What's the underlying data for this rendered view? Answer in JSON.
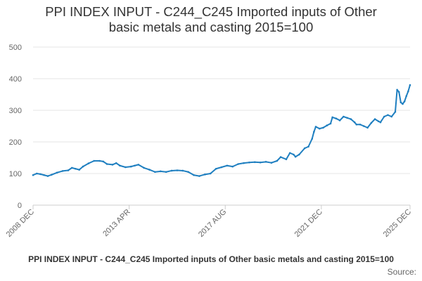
{
  "chart_data": {
    "type": "line",
    "title_line1": "PPI INDEX INPUT - C244_C245 Imported inputs of Other",
    "title_line2": "basic metals and casting 2015=100",
    "xlabel": "",
    "ylabel": "",
    "ylim": [
      0,
      500
    ],
    "yticks": [
      0,
      100,
      200,
      300,
      400,
      500
    ],
    "x_range": [
      "2008-12",
      "2025-12"
    ],
    "xticks": [
      {
        "label": "2008 DEC",
        "date": "2008-12"
      },
      {
        "label": "2013 APR",
        "date": "2013-04"
      },
      {
        "label": "2017 AUG",
        "date": "2017-08"
      },
      {
        "label": "2021 DEC",
        "date": "2021-12"
      },
      {
        "label": "2025 DEC",
        "date": "2025-12"
      }
    ],
    "grid": true,
    "legend": "none",
    "series": [
      {
        "color": "#1f7fc0",
        "points": [
          [
            "2008-12",
            95
          ],
          [
            "2009-02",
            100
          ],
          [
            "2009-04",
            98
          ],
          [
            "2009-06",
            95
          ],
          [
            "2009-08",
            92
          ],
          [
            "2009-10",
            96
          ],
          [
            "2010-01",
            103
          ],
          [
            "2010-04",
            108
          ],
          [
            "2010-07",
            110
          ],
          [
            "2010-09",
            118
          ],
          [
            "2010-11",
            115
          ],
          [
            "2011-01",
            112
          ],
          [
            "2011-03",
            122
          ],
          [
            "2011-06",
            132
          ],
          [
            "2011-09",
            140
          ],
          [
            "2011-12",
            140
          ],
          [
            "2012-02",
            138
          ],
          [
            "2012-04",
            130
          ],
          [
            "2012-07",
            128
          ],
          [
            "2012-09",
            133
          ],
          [
            "2012-11",
            125
          ],
          [
            "2013-02",
            120
          ],
          [
            "2013-05",
            122
          ],
          [
            "2013-07",
            125
          ],
          [
            "2013-09",
            128
          ],
          [
            "2013-12",
            118
          ],
          [
            "2014-03",
            112
          ],
          [
            "2014-06",
            105
          ],
          [
            "2014-09",
            107
          ],
          [
            "2014-12",
            105
          ],
          [
            "2015-03",
            109
          ],
          [
            "2015-06",
            110
          ],
          [
            "2015-09",
            109
          ],
          [
            "2015-12",
            105
          ],
          [
            "2016-03",
            95
          ],
          [
            "2016-06",
            92
          ],
          [
            "2016-09",
            97
          ],
          [
            "2016-12",
            100
          ],
          [
            "2017-03",
            115
          ],
          [
            "2017-06",
            120
          ],
          [
            "2017-09",
            125
          ],
          [
            "2017-12",
            122
          ],
          [
            "2018-03",
            130
          ],
          [
            "2018-06",
            133
          ],
          [
            "2018-09",
            135
          ],
          [
            "2018-12",
            136
          ],
          [
            "2019-03",
            135
          ],
          [
            "2019-06",
            137
          ],
          [
            "2019-09",
            134
          ],
          [
            "2019-12",
            140
          ],
          [
            "2020-02",
            152
          ],
          [
            "2020-05",
            145
          ],
          [
            "2020-07",
            165
          ],
          [
            "2020-09",
            160
          ],
          [
            "2020-10",
            153
          ],
          [
            "2020-12",
            160
          ],
          [
            "2021-03",
            180
          ],
          [
            "2021-05",
            185
          ],
          [
            "2021-07",
            210
          ],
          [
            "2021-08",
            232
          ],
          [
            "2021-09",
            248
          ],
          [
            "2021-11",
            242
          ],
          [
            "2022-01",
            245
          ],
          [
            "2022-03",
            252
          ],
          [
            "2022-05",
            258
          ],
          [
            "2022-06",
            278
          ],
          [
            "2022-08",
            274
          ],
          [
            "2022-10",
            268
          ],
          [
            "2022-12",
            280
          ],
          [
            "2023-02",
            276
          ],
          [
            "2023-04",
            272
          ],
          [
            "2023-06",
            262
          ],
          [
            "2023-07",
            255
          ],
          [
            "2023-09",
            255
          ],
          [
            "2023-11",
            250
          ],
          [
            "2024-01",
            245
          ],
          [
            "2024-03",
            260
          ],
          [
            "2024-05",
            272
          ],
          [
            "2024-07",
            265
          ],
          [
            "2024-08",
            262
          ],
          [
            "2024-10",
            280
          ],
          [
            "2024-12",
            285
          ],
          [
            "2025-02",
            280
          ],
          [
            "2025-04",
            295
          ],
          [
            "2025-05",
            365
          ],
          [
            "2025-06",
            358
          ],
          [
            "2025-07",
            325
          ],
          [
            "2025-08",
            320
          ],
          [
            "2025-09",
            328
          ],
          [
            "2025-10",
            345
          ],
          [
            "2025-11",
            360
          ],
          [
            "2025-12",
            380
          ]
        ]
      }
    ]
  },
  "footer": {
    "caption": "PPI INDEX INPUT - C244_C245 Imported inputs of Other basic metals and casting 2015=100",
    "source": "Source:"
  },
  "colors": {
    "line": "#1f7fc0",
    "grid": "#e6e6e6",
    "axis": "#cccccc",
    "text": "#333333",
    "tick_text": "#666666"
  }
}
